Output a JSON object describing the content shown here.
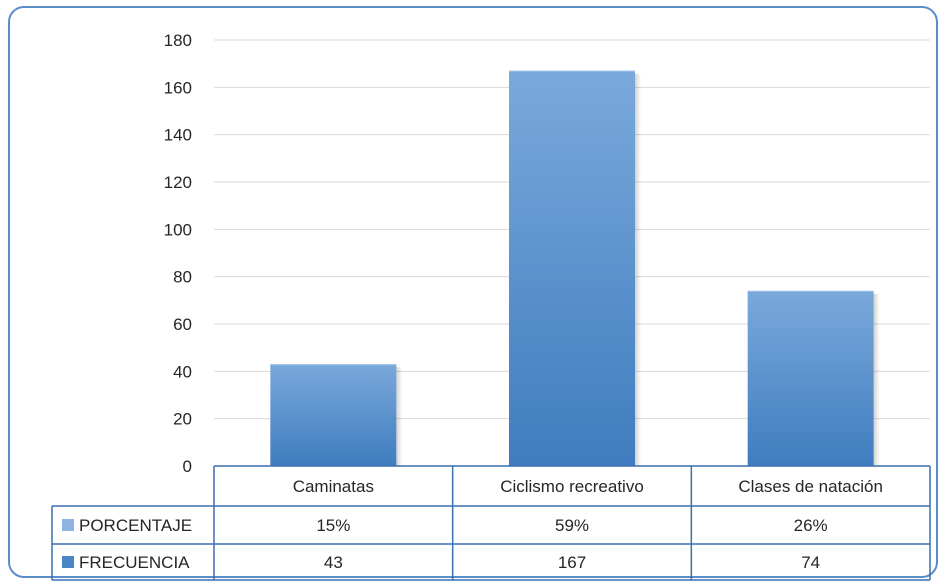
{
  "chart_data": {
    "type": "bar",
    "categories": [
      "Caminatas",
      "Ciclismo recreativo",
      "Clases de natación"
    ],
    "series": [
      {
        "name": "FRECUENCIA",
        "values": [
          43,
          167,
          74
        ],
        "color": "#4a86c6",
        "plotted": true
      },
      {
        "name": "PORCENTAJE",
        "values": [
          "15%",
          "59%",
          "26%"
        ],
        "color": "#8fb3e0",
        "plotted": false
      }
    ],
    "ylim": [
      0,
      180
    ],
    "yticks": [
      0,
      20,
      40,
      60,
      80,
      100,
      120,
      140,
      160,
      180
    ],
    "grid": true,
    "legend": "data-table",
    "title": "",
    "xlabel": "",
    "ylabel": ""
  },
  "colors": {
    "frame_border": "#5b8ec9",
    "table_border": "#3a6fb0",
    "grid": "#d9d9d9",
    "bar_light": "#7aa9db",
    "bar_dark": "#3f7cbf"
  }
}
